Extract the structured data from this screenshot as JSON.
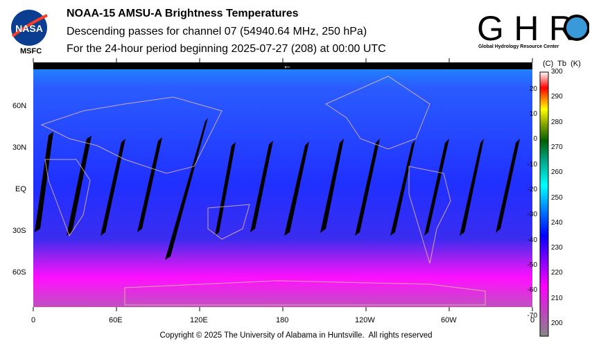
{
  "header": {
    "title": "NOAA-15 AMSU-A Brightness Temperatures",
    "subtitle": "Descending passes for channel 07 (54940.64 MHz, 250 hPa)",
    "period": "For the 24-hour period beginning 2025-07-27 (208) at 00:00 UTC"
  },
  "logos": {
    "nasa": "NASA",
    "nasa_caption": "MSFC",
    "ghrc": "GHRC",
    "ghrc_caption": "Global Hydrology Resource Center"
  },
  "map": {
    "lat_labels": [
      "60N",
      "30N",
      "EQ",
      "30S",
      "60S"
    ],
    "lon_labels": [
      "0",
      "60E",
      "120E",
      "180",
      "120W",
      "60W",
      "0"
    ],
    "direction_arrow": "←"
  },
  "colorbar": {
    "header": "(C)  Tb  (K)",
    "kelvin_labels": [
      "300",
      "290",
      "280",
      "270",
      "260",
      "250",
      "240",
      "230",
      "220",
      "210",
      "200"
    ],
    "celsius_labels": [
      "20",
      "10",
      "0",
      "-10",
      "-20",
      "-30",
      "-40",
      "-50",
      "-60",
      "-70"
    ],
    "range_k": [
      195,
      300
    ],
    "colors": [
      "#888888",
      "#c040c0",
      "#ff00ff",
      "#8000ff",
      "#0000ff",
      "#0080ff",
      "#00ffff",
      "#00a080",
      "#006000",
      "#80a000",
      "#ffff00",
      "#ff8000",
      "#ff0000",
      "#ff8080",
      "#ffffff"
    ]
  },
  "footer": {
    "copyright": "Copyright © 2025 The University of Alabama in Huntsville.  All rights reserved"
  }
}
